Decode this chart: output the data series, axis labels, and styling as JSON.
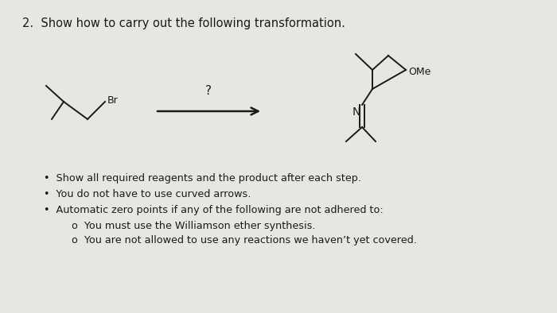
{
  "title": "2.  Show how to carry out the following transformation.",
  "background_color": "#e8e6e3",
  "question_mark": "?",
  "bullet_points": [
    "Show all required reagents and the product after each step.",
    "You do not have to use curved arrows.",
    "Automatic zero points if any of the following are not adhered to:"
  ],
  "sub_bullets": [
    "You must use the Williamson ether synthesis.",
    "You are not allowed to use any reactions we haven’t yet covered."
  ],
  "line_color": "#1a1a1a",
  "text_color": "#1a1a1a",
  "title_fontsize": 10.5,
  "bullet_fontsize": 9.2,
  "sub_fontsize": 9.2
}
